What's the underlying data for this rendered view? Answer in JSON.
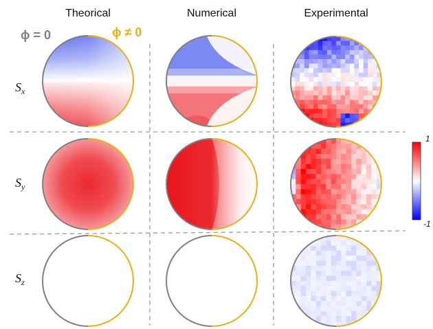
{
  "columns": [
    {
      "key": "theoretical",
      "title": "Theorical"
    },
    {
      "key": "numerical",
      "title": "Numerical"
    },
    {
      "key": "experimental",
      "title": "Experimental"
    }
  ],
  "rows": [
    {
      "key": "sx",
      "symbol": "S",
      "sub": "x"
    },
    {
      "key": "sy",
      "symbol": "S",
      "sub": "y"
    },
    {
      "key": "sz",
      "symbol": "S",
      "sub": "z"
    }
  ],
  "legend": {
    "phi_zero": {
      "text": "ϕ = 0",
      "color": "#808080"
    },
    "phi_nonzero": {
      "text": "ϕ ≠ 0",
      "color": "#e8b014"
    }
  },
  "colorbar": {
    "max_label": "1",
    "min_label": "-1",
    "colors": {
      "high": "#ff0000",
      "mid": "#ffffff",
      "low": "#0000ff"
    }
  },
  "colors": {
    "red": "#e8141c",
    "blue": "#1a2ff0",
    "rim_left": "#7f7f7f",
    "rim_right": "#e8b014",
    "divider": "#9a9a9a"
  }
}
